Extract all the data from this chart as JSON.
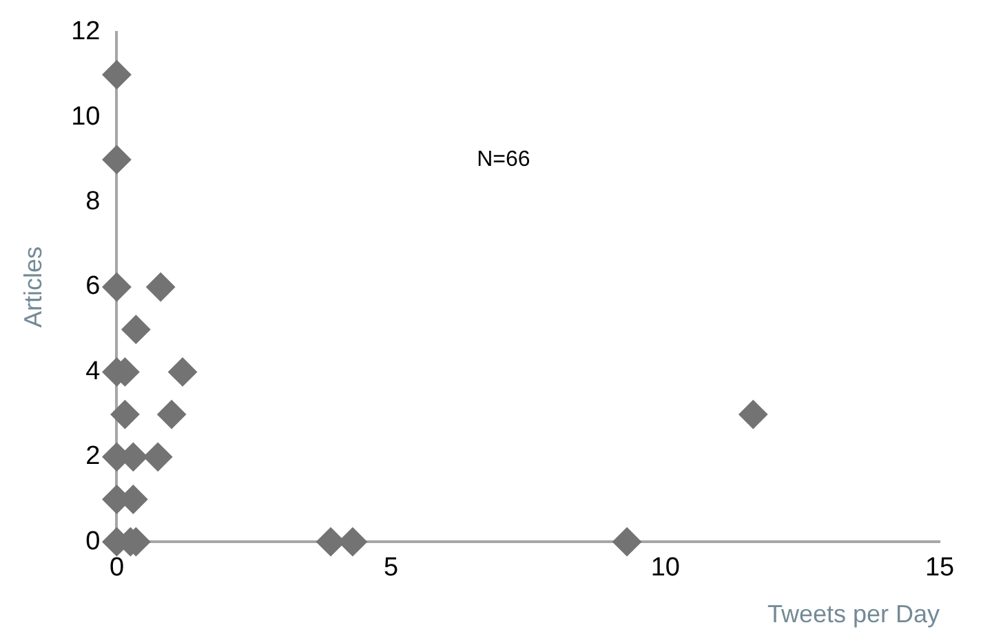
{
  "chart_data": {
    "type": "scatter",
    "xlabel": "Tweets per Day",
    "ylabel": "Articles",
    "annotations": [
      "N=66"
    ],
    "x": [
      0,
      0,
      0,
      0.8,
      0.35,
      0,
      0.15,
      1.2,
      0.15,
      1.0,
      0,
      0.3,
      0.75,
      0,
      0.3,
      0,
      0.25,
      0.35,
      3.9,
      4.3,
      9.3,
      11.6
    ],
    "values": [
      11,
      9,
      6,
      6,
      5,
      4,
      4,
      4,
      3,
      3,
      2,
      2,
      2,
      1,
      1,
      0,
      0,
      0,
      0,
      0,
      0,
      3
    ],
    "color": "#737373",
    "marker": "diamond",
    "xlim": [
      0,
      15
    ],
    "xticks": [
      0,
      5,
      10,
      15
    ],
    "ylim": [
      0,
      12
    ],
    "yticks": [
      0,
      2,
      4,
      6,
      8,
      10,
      12
    ],
    "grid": false,
    "legend": false
  }
}
